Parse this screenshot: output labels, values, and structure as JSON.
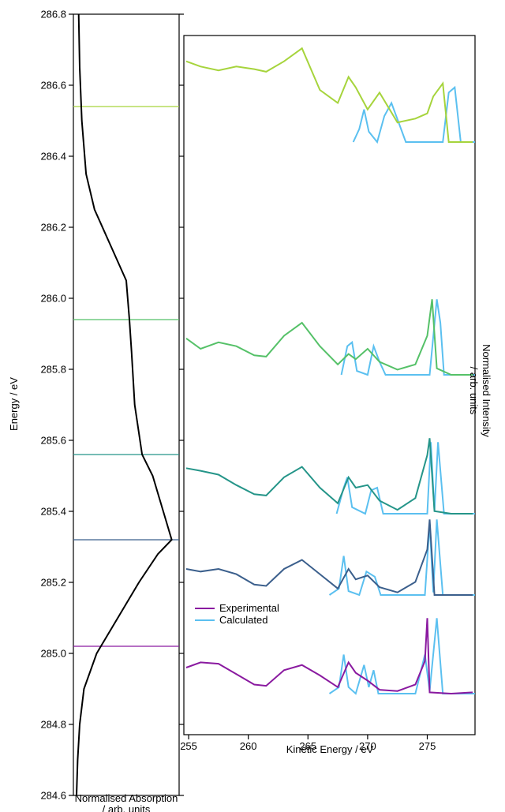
{
  "colors": {
    "calculated": "#5bc0f0",
    "experimental": [
      "#8a1aa0",
      "#3b5f8c",
      "#259589",
      "#55c168",
      "#a6d43c"
    ],
    "absorption": "#000000"
  },
  "chart_data": [
    {
      "type": "line",
      "title": "",
      "xlabel": "Normalised Absorption / arb. units",
      "ylabel": "Energy / eV",
      "ylim": [
        284.6,
        286.8
      ],
      "y_ticks": [
        "284.6",
        "284.8",
        "285.0",
        "285.2",
        "285.4",
        "285.6",
        "285.8",
        "286.0",
        "286.2",
        "286.4",
        "286.6",
        "286.8"
      ],
      "series": [
        {
          "values": [
            [
              0.03,
              284.6
            ],
            [
              0.04,
              284.7
            ],
            [
              0.06,
              284.8
            ],
            [
              0.1,
              284.9
            ],
            [
              0.22,
              285.0
            ],
            [
              0.42,
              285.1
            ],
            [
              0.62,
              285.2
            ],
            [
              0.8,
              285.28
            ],
            [
              0.93,
              285.32
            ],
            [
              0.85,
              285.4
            ],
            [
              0.75,
              285.5
            ],
            [
              0.65,
              285.56
            ],
            [
              0.58,
              285.7
            ],
            [
              0.55,
              285.85
            ],
            [
              0.53,
              285.94
            ],
            [
              0.5,
              286.05
            ],
            [
              0.35,
              286.15
            ],
            [
              0.2,
              286.25
            ],
            [
              0.12,
              286.35
            ],
            [
              0.08,
              286.5
            ],
            [
              0.06,
              286.65
            ],
            [
              0.05,
              286.8
            ]
          ]
        }
      ],
      "excitation_energies": [
        285.02,
        285.32,
        285.56,
        285.94,
        286.54
      ]
    },
    {
      "type": "line",
      "title": "",
      "xlabel": "Kinetic Energy / eV",
      "ylabel": "Normalised Intensity / arb. units",
      "xlim": [
        254.6,
        279.0
      ],
      "x_ticks": [
        "255",
        "260",
        "265",
        "270",
        "275"
      ],
      "legend": {
        "position": "bottom-left",
        "entries": [
          "Experimental",
          "Calculated"
        ]
      },
      "spectra": [
        {
          "excitation_energy": 285.02,
          "experimental": [
            [
              254.8,
              0.2
            ],
            [
              256.0,
              0.24
            ],
            [
              257.5,
              0.23
            ],
            [
              259.0,
              0.15
            ],
            [
              260.5,
              0.07
            ],
            [
              261.5,
              0.06
            ],
            [
              263.0,
              0.18
            ],
            [
              264.5,
              0.22
            ],
            [
              266.0,
              0.14
            ],
            [
              267.5,
              0.05
            ],
            [
              268.4,
              0.24
            ],
            [
              269.0,
              0.16
            ],
            [
              270.0,
              0.1
            ],
            [
              271.0,
              0.03
            ],
            [
              272.5,
              0.02
            ],
            [
              274.0,
              0.07
            ],
            [
              274.8,
              0.25
            ],
            [
              275.0,
              0.58
            ],
            [
              275.2,
              0.01
            ],
            [
              277.0,
              0.0
            ],
            [
              278.8,
              0.01
            ]
          ],
          "calculated": [
            [
              266.8,
              0.0
            ],
            [
              267.6,
              0.05
            ],
            [
              268.0,
              0.3
            ],
            [
              268.4,
              0.05
            ],
            [
              269.0,
              0.0
            ],
            [
              269.7,
              0.22
            ],
            [
              270.1,
              0.05
            ],
            [
              270.5,
              0.18
            ],
            [
              270.9,
              0.0
            ],
            [
              274.0,
              0.0
            ],
            [
              274.8,
              0.3
            ],
            [
              275.2,
              0.02
            ],
            [
              275.8,
              0.58
            ],
            [
              276.3,
              0.0
            ],
            [
              279.0,
              0.0
            ]
          ]
        },
        {
          "excitation_energy": 285.32,
          "experimental": [
            [
              254.8,
              0.2
            ],
            [
              256.0,
              0.18
            ],
            [
              257.5,
              0.2
            ],
            [
              259.0,
              0.16
            ],
            [
              260.5,
              0.08
            ],
            [
              261.5,
              0.07
            ],
            [
              263.0,
              0.2
            ],
            [
              264.5,
              0.27
            ],
            [
              266.0,
              0.16
            ],
            [
              267.5,
              0.05
            ],
            [
              268.4,
              0.2
            ],
            [
              269.0,
              0.12
            ],
            [
              270.0,
              0.15
            ],
            [
              271.0,
              0.06
            ],
            [
              272.5,
              0.02
            ],
            [
              274.0,
              0.1
            ],
            [
              275.0,
              0.35
            ],
            [
              275.2,
              0.58
            ],
            [
              275.6,
              0.0
            ],
            [
              277.0,
              0.0
            ],
            [
              278.8,
              0.0
            ]
          ],
          "calculated": [
            [
              266.8,
              0.0
            ],
            [
              267.6,
              0.05
            ],
            [
              268.0,
              0.3
            ],
            [
              268.4,
              0.03
            ],
            [
              269.3,
              0.0
            ],
            [
              269.9,
              0.18
            ],
            [
              270.6,
              0.14
            ],
            [
              271.1,
              0.0
            ],
            [
              274.8,
              0.0
            ],
            [
              275.2,
              0.55
            ],
            [
              275.5,
              0.02
            ],
            [
              275.8,
              0.58
            ],
            [
              276.3,
              0.0
            ],
            [
              279.0,
              0.0
            ]
          ]
        },
        {
          "excitation_energy": 285.56,
          "experimental": [
            [
              254.8,
              0.35
            ],
            [
              256.0,
              0.33
            ],
            [
              257.5,
              0.3
            ],
            [
              259.0,
              0.22
            ],
            [
              260.5,
              0.15
            ],
            [
              261.5,
              0.14
            ],
            [
              263.0,
              0.28
            ],
            [
              264.5,
              0.36
            ],
            [
              266.0,
              0.2
            ],
            [
              267.5,
              0.08
            ],
            [
              268.4,
              0.28
            ],
            [
              269.0,
              0.2
            ],
            [
              270.0,
              0.22
            ],
            [
              271.0,
              0.1
            ],
            [
              272.5,
              0.03
            ],
            [
              274.0,
              0.12
            ],
            [
              275.0,
              0.45
            ],
            [
              275.2,
              0.58
            ],
            [
              275.6,
              0.02
            ],
            [
              277.0,
              0.0
            ],
            [
              278.8,
              0.0
            ]
          ],
          "calculated": [
            [
              267.4,
              0.0
            ],
            [
              268.0,
              0.2
            ],
            [
              268.3,
              0.28
            ],
            [
              268.7,
              0.05
            ],
            [
              269.8,
              0.0
            ],
            [
              270.3,
              0.18
            ],
            [
              270.8,
              0.2
            ],
            [
              271.3,
              0.0
            ],
            [
              275.0,
              0.0
            ],
            [
              275.3,
              0.55
            ],
            [
              275.6,
              0.02
            ],
            [
              275.9,
              0.55
            ],
            [
              276.4,
              0.0
            ],
            [
              279.0,
              0.0
            ]
          ]
        },
        {
          "excitation_energy": 285.94,
          "experimental": [
            [
              254.8,
              0.28
            ],
            [
              256.0,
              0.2
            ],
            [
              257.5,
              0.25
            ],
            [
              259.0,
              0.22
            ],
            [
              260.5,
              0.15
            ],
            [
              261.5,
              0.14
            ],
            [
              263.0,
              0.3
            ],
            [
              264.5,
              0.4
            ],
            [
              266.0,
              0.22
            ],
            [
              267.5,
              0.08
            ],
            [
              268.4,
              0.16
            ],
            [
              269.0,
              0.12
            ],
            [
              270.0,
              0.2
            ],
            [
              271.0,
              0.1
            ],
            [
              272.5,
              0.04
            ],
            [
              274.0,
              0.08
            ],
            [
              275.0,
              0.3
            ],
            [
              275.4,
              0.58
            ],
            [
              275.8,
              0.05
            ],
            [
              277.0,
              0.0
            ],
            [
              278.8,
              0.0
            ]
          ],
          "calculated": [
            [
              267.8,
              0.0
            ],
            [
              268.3,
              0.22
            ],
            [
              268.7,
              0.25
            ],
            [
              269.1,
              0.03
            ],
            [
              270.0,
              0.0
            ],
            [
              270.5,
              0.22
            ],
            [
              271.0,
              0.1
            ],
            [
              271.5,
              0.0
            ],
            [
              275.2,
              0.0
            ],
            [
              275.8,
              0.58
            ],
            [
              276.1,
              0.4
            ],
            [
              276.4,
              0.0
            ],
            [
              279.0,
              0.0
            ]
          ]
        },
        {
          "excitation_energy": 286.54,
          "experimental": [
            [
              254.8,
              0.62
            ],
            [
              256.0,
              0.58
            ],
            [
              257.5,
              0.55
            ],
            [
              259.0,
              0.58
            ],
            [
              260.5,
              0.56
            ],
            [
              261.5,
              0.54
            ],
            [
              263.0,
              0.62
            ],
            [
              264.5,
              0.72
            ],
            [
              266.0,
              0.4
            ],
            [
              267.5,
              0.3
            ],
            [
              268.4,
              0.5
            ],
            [
              269.0,
              0.42
            ],
            [
              270.0,
              0.25
            ],
            [
              271.0,
              0.38
            ],
            [
              272.5,
              0.15
            ],
            [
              274.0,
              0.18
            ],
            [
              275.0,
              0.22
            ],
            [
              275.5,
              0.35
            ],
            [
              276.3,
              0.45
            ],
            [
              276.8,
              0.0
            ],
            [
              278.8,
              0.0
            ]
          ],
          "calculated": [
            [
              268.8,
              0.0
            ],
            [
              269.3,
              0.1
            ],
            [
              269.7,
              0.25
            ],
            [
              270.1,
              0.08
            ],
            [
              270.8,
              0.0
            ],
            [
              271.4,
              0.2
            ],
            [
              272.0,
              0.3
            ],
            [
              272.6,
              0.15
            ],
            [
              273.2,
              0.0
            ],
            [
              276.3,
              0.0
            ],
            [
              276.8,
              0.38
            ],
            [
              277.3,
              0.42
            ],
            [
              277.8,
              0.0
            ],
            [
              279.0,
              0.0
            ]
          ]
        }
      ]
    }
  ]
}
